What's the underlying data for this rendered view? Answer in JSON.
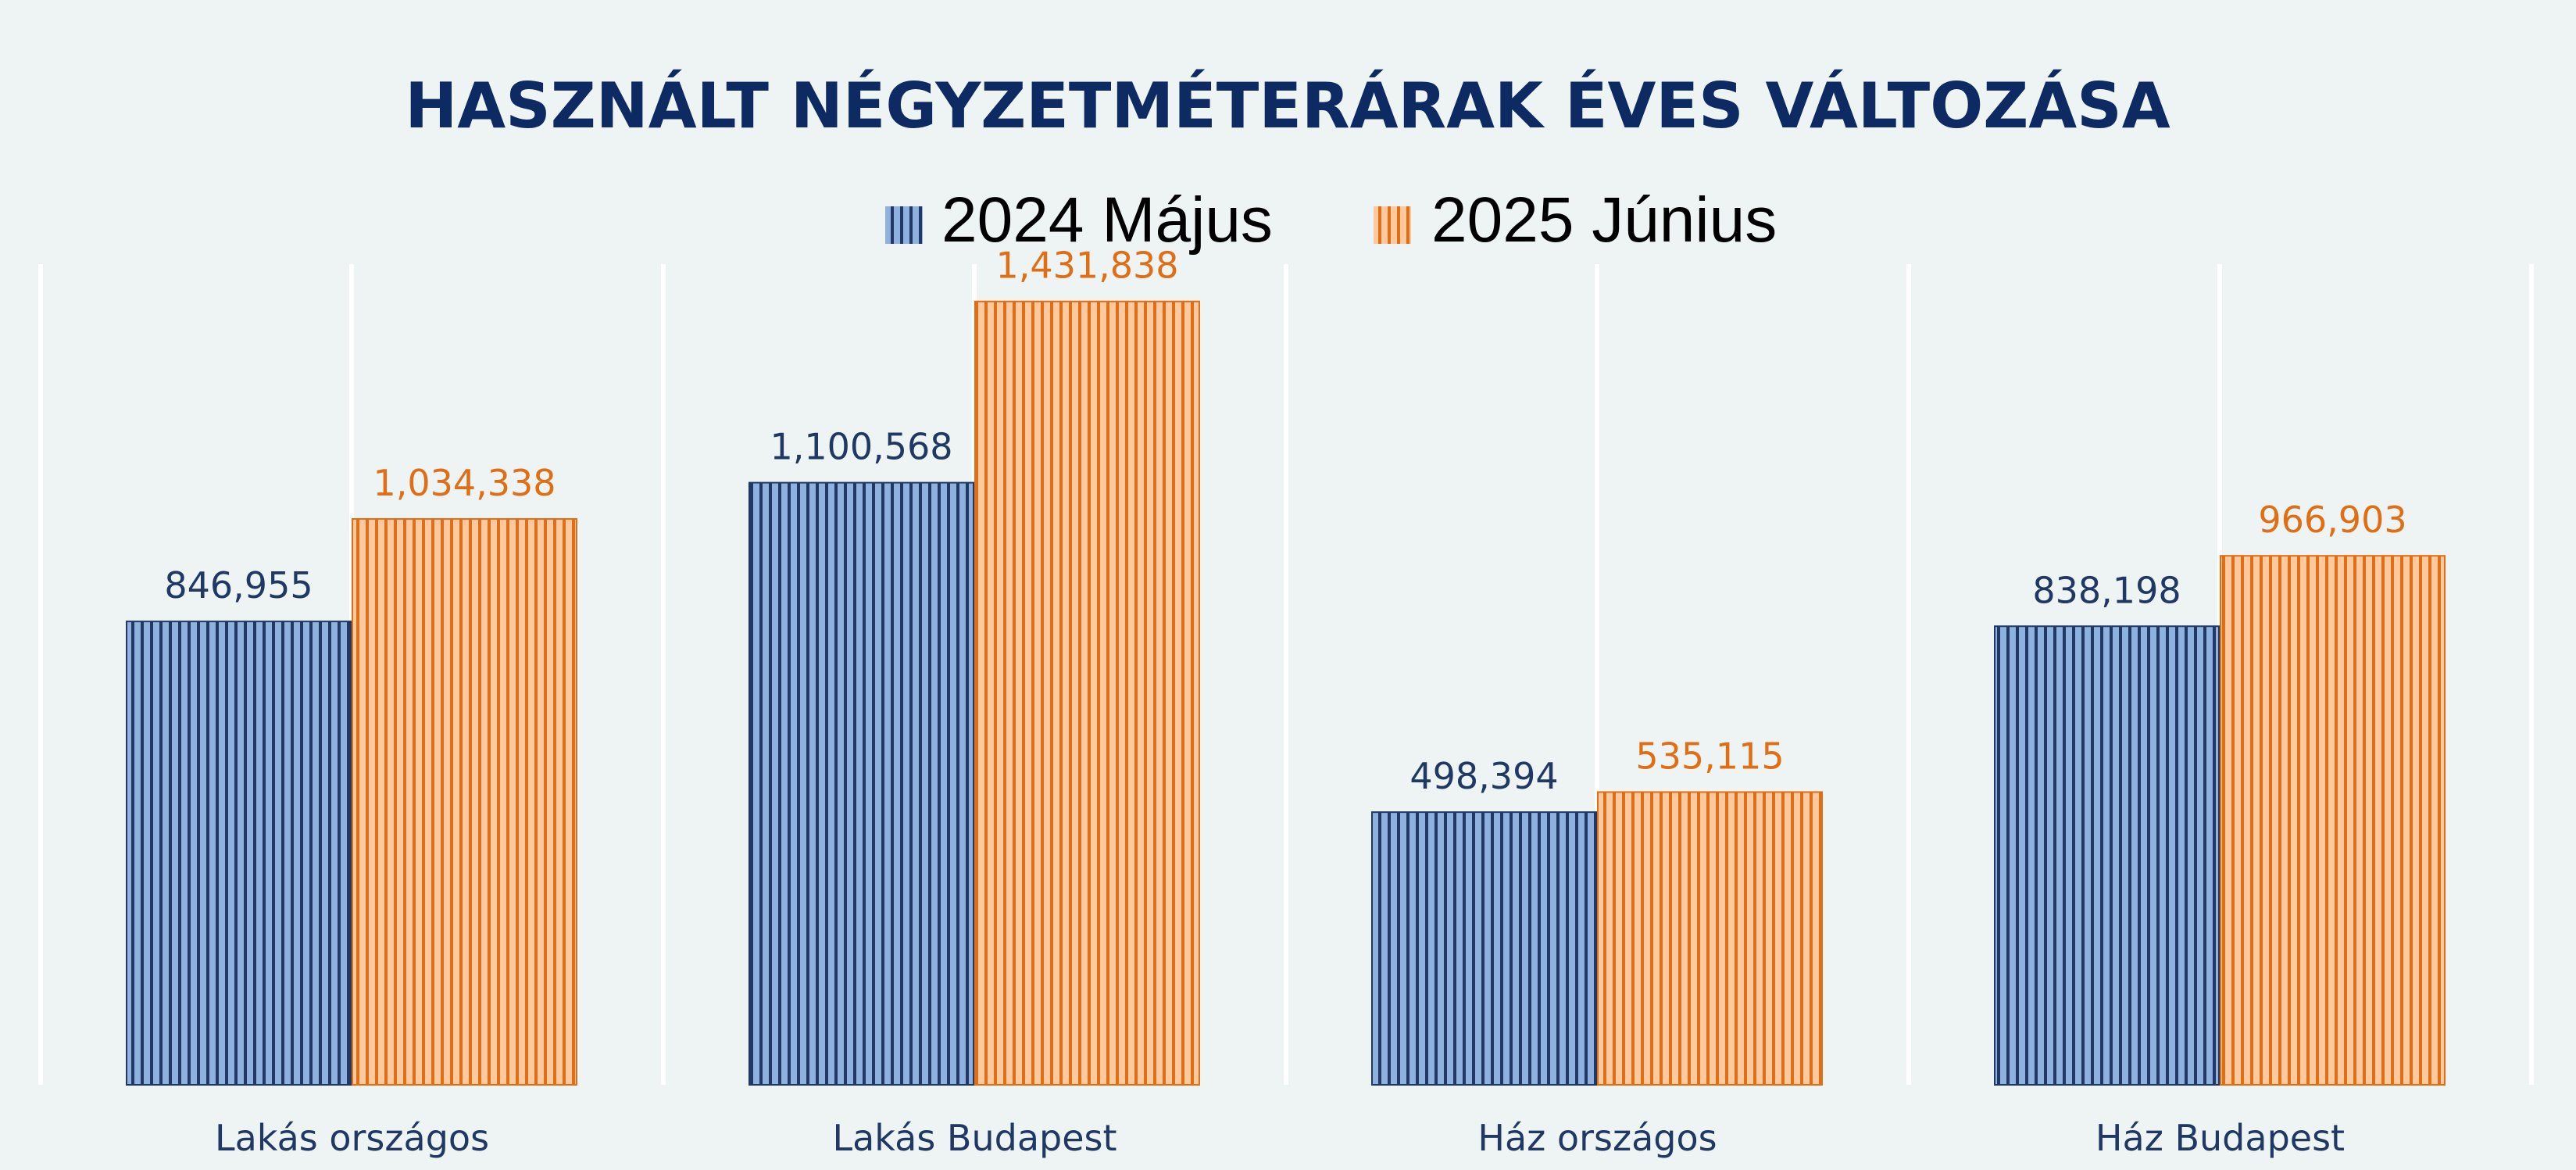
{
  "colors": {
    "background": "#eef3f3",
    "title": "#0e2a63",
    "series1_fill": "#8fb1e0",
    "series1_stroke": "#1f3864",
    "series1_label": "#1f3864",
    "series2_fill": "#ffc9a0",
    "series2_stroke": "#e06e15",
    "series2_label": "#e06e15",
    "category_label": "#1f3864",
    "gridline": "#ffffff",
    "legend_text": "#000000"
  },
  "chart_data": {
    "type": "bar",
    "title": "HASZNÁLT NÉGYZETMÉTERÁRAK ÉVES VÁLTOZÁSA",
    "categories": [
      "Lakás országos",
      "Lakás Budapest",
      "Ház országos",
      "Ház Budapest"
    ],
    "series": [
      {
        "name": "2024 Május",
        "values": [
          846955,
          1100568,
          498394,
          838198
        ],
        "labels": [
          "846,955",
          "1,100,568",
          "498,394",
          "838,198"
        ]
      },
      {
        "name": "2025 Június",
        "values": [
          1034338,
          1431838,
          535115,
          966903
        ],
        "labels": [
          "1,034,338",
          "1,431,838",
          "535,115",
          "966,903"
        ]
      }
    ],
    "ylim": [
      0,
      1600000
    ],
    "legend_position": "top-center",
    "grid": "vertical"
  }
}
